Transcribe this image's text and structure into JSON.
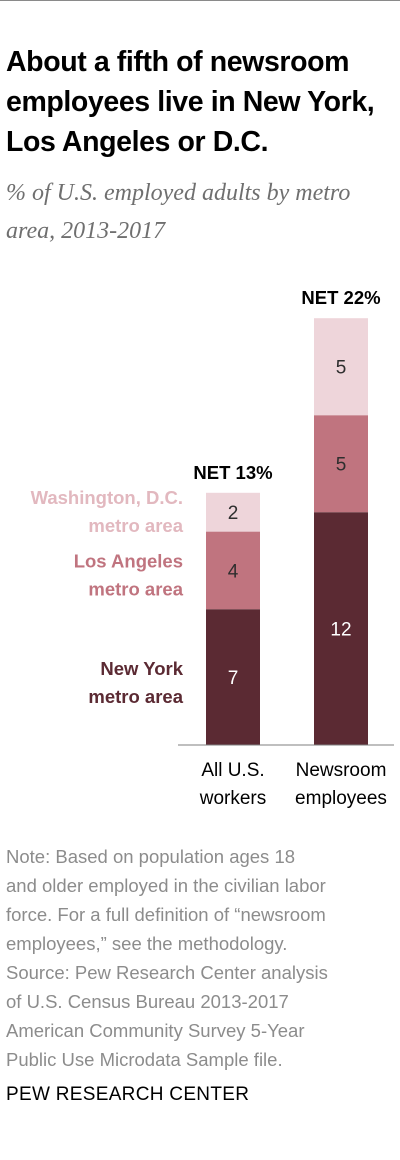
{
  "title": "About a fifth of newsroom employees live in New York, Los Angeles or D.C.",
  "subtitle": "% of U.S. employed adults by metro area, 2013-2017",
  "chart_data": {
    "type": "bar",
    "stacked": true,
    "categories": [
      "All U.S. workers",
      "Newsroom employees"
    ],
    "category_lines": [
      [
        "All U.S.",
        "workers"
      ],
      [
        "Newsroom",
        "employees"
      ]
    ],
    "series": [
      {
        "name": "New York metro area",
        "name_lines": [
          "New York",
          "metro area"
        ],
        "values": [
          7,
          12
        ],
        "color": "#5b2a33",
        "label_color": "#ffffff",
        "legend_color": "#5b2a33"
      },
      {
        "name": "Los Angeles metro area",
        "name_lines": [
          "Los Angeles",
          "metro area"
        ],
        "values": [
          4,
          5
        ],
        "color": "#c0747f",
        "label_color": "#2e2e2e",
        "legend_color": "#c0747f"
      },
      {
        "name": "Washington, D.C. metro area",
        "name_lines": [
          "Washington, D.C.",
          "metro area"
        ],
        "values": [
          2,
          5
        ],
        "color": "#eed5da",
        "label_color": "#2e2e2e",
        "legend_color": "#e2b8bf"
      }
    ],
    "totals": [
      "NET 13%",
      "NET 22%"
    ],
    "ylim": [
      0,
      22
    ],
    "grid": false,
    "legend": "left"
  },
  "note_lines": [
    "Note: Based on population ages 18",
    "and older employed in the civilian labor",
    "force. For a full definition of “newsroom",
    "employees,” see the methodology.",
    "Source: Pew Research Center analysis",
    "of U.S. Census Bureau 2013-2017",
    "American Community Survey 5-Year",
    "Public Use Microdata Sample file."
  ],
  "source_label": "PEW RESEARCH CENTER"
}
